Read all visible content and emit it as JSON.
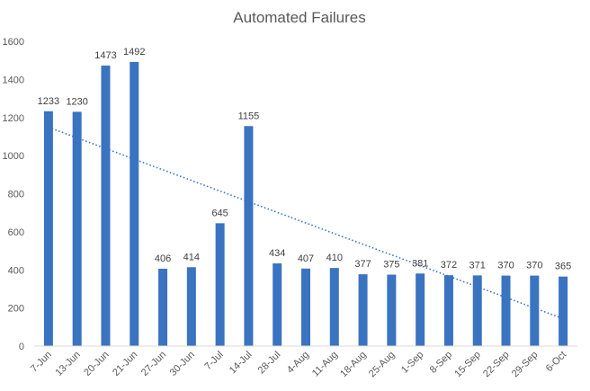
{
  "chart_data": {
    "type": "bar",
    "title": "Automated Failures",
    "xlabel": "",
    "ylabel": "",
    "categories": [
      "7-Jun",
      "13-Jun",
      "20-Jun",
      "21-Jun",
      "27-Jun",
      "30-Jun",
      "7-Jul",
      "14-Jul",
      "28-Jul",
      "4-Aug",
      "11-Aug",
      "18-Aug",
      "25-Aug",
      "1-Sep",
      "8-Sep",
      "15-Sep",
      "22-Sep",
      "29-Sep",
      "6-Oct"
    ],
    "values": [
      1233,
      1230,
      1473,
      1492,
      406,
      414,
      645,
      1155,
      434,
      407,
      410,
      377,
      375,
      381,
      372,
      371,
      370,
      370,
      365
    ],
    "ylim": [
      0,
      1600
    ],
    "yticks": [
      0,
      200,
      400,
      600,
      800,
      1000,
      1200,
      1400,
      1600
    ],
    "grid": false,
    "legend": "none",
    "trendline": {
      "type": "linear",
      "style": "dotted"
    },
    "colors": {
      "bar": "#3A73C0",
      "trend": "#3A73C0",
      "axis": "#D9D9D9",
      "text": "#595959"
    }
  }
}
